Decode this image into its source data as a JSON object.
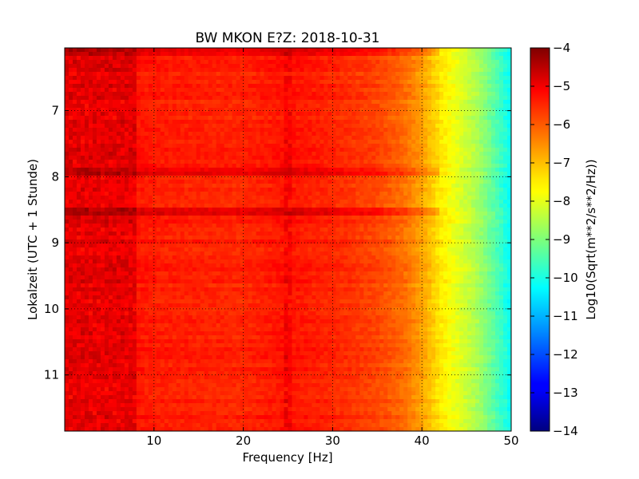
{
  "chart_data": {
    "type": "heatmap",
    "title": "BW MKON E?Z: 2018-10-31",
    "xlabel": "Frequency [Hz]",
    "ylabel": "Lokalzeit (UTC + 1 Stunde)",
    "colorbar_label": "Log10(Sqrt(m**2/s**2/Hz))",
    "xlim": [
      0,
      50
    ],
    "ylim": [
      6.05,
      11.85
    ],
    "y_inverted": true,
    "x_ticks": [
      10,
      20,
      30,
      40,
      50
    ],
    "y_ticks": [
      7,
      8,
      9,
      10,
      11
    ],
    "clim": [
      -14,
      -4
    ],
    "colorbar_ticks": [
      -4,
      -5,
      -6,
      -7,
      -8,
      -9,
      -10,
      -11,
      -12,
      -13,
      -14
    ],
    "colormap": "jet",
    "grid": true,
    "grid_style": "dotted",
    "frequency_profile": {
      "frequency_hz": [
        0,
        5,
        10,
        20,
        25,
        30,
        35,
        38,
        40,
        42,
        44,
        46,
        48,
        50
      ],
      "log10_amplitude": [
        -5.2,
        -5.3,
        -5.5,
        -5.6,
        -5.4,
        -5.6,
        -5.9,
        -6.3,
        -6.8,
        -7.5,
        -8.0,
        -8.5,
        -9.3,
        -10.2
      ]
    },
    "band_features": [
      {
        "frequency_hz": [
          0,
          8
        ],
        "log10_amplitude": -5.0
      },
      {
        "frequency_hz": [
          24.5,
          25.5
        ],
        "log10_amplitude": -5.2
      }
    ],
    "time_features": [
      {
        "time_h": 6.12,
        "log10_amplitude": -4.9
      },
      {
        "time_h": 7.93,
        "log10_amplitude": -5.0
      },
      {
        "time_h": 8.55,
        "log10_amplitude": -5.1
      }
    ]
  }
}
